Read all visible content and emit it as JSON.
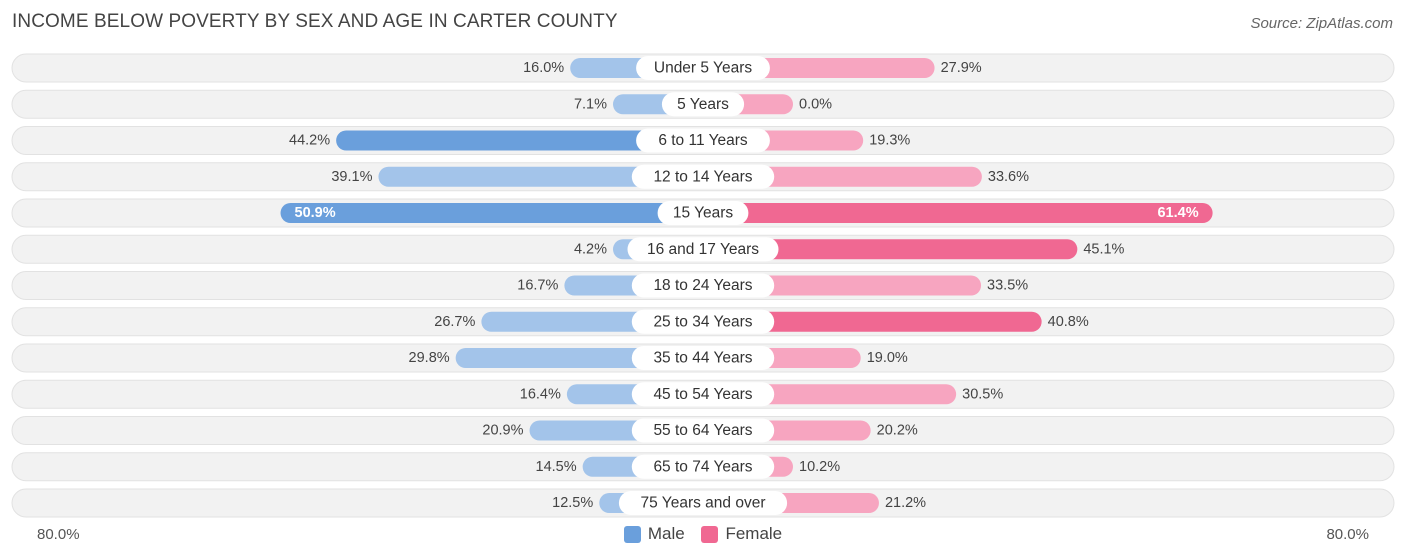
{
  "header": {
    "title": "INCOME BELOW POVERTY BY SEX AND AGE IN CARTER COUNTY",
    "source": "Source: ZipAtlas.com"
  },
  "axis": {
    "left_label": "80.0%",
    "right_label": "80.0%"
  },
  "legend": {
    "male_label": "Male",
    "female_label": "Female"
  },
  "colors": {
    "male": "#6a9fdc",
    "male_light": "#a3c4ea",
    "female": "#f06892",
    "female_light": "#f7a5c0",
    "row_bg": "#f2f2f2",
    "row_border": "#e2e2e2"
  },
  "chart_data": {
    "type": "bar",
    "orientation": "horizontal-diverging",
    "title": "INCOME BELOW POVERTY BY SEX AND AGE IN CARTER COUNTY",
    "xlim": [
      -80,
      80
    ],
    "categories": [
      "Under 5 Years",
      "5 Years",
      "6 to 11 Years",
      "12 to 14 Years",
      "15 Years",
      "16 and 17 Years",
      "18 to 24 Years",
      "25 to 34 Years",
      "35 to 44 Years",
      "45 to 54 Years",
      "55 to 64 Years",
      "65 to 74 Years",
      "75 Years and over"
    ],
    "series": [
      {
        "name": "Male",
        "values": [
          16.0,
          7.1,
          44.2,
          39.1,
          50.9,
          4.2,
          16.7,
          26.7,
          29.8,
          16.4,
          20.9,
          14.5,
          12.5
        ],
        "labels": [
          "16.0%",
          "7.1%",
          "44.2%",
          "39.1%",
          "50.9%",
          "4.2%",
          "16.7%",
          "26.7%",
          "29.8%",
          "16.4%",
          "20.9%",
          "14.5%",
          "12.5%"
        ]
      },
      {
        "name": "Female",
        "values": [
          27.9,
          0.0,
          19.3,
          33.6,
          61.4,
          45.1,
          33.5,
          40.8,
          19.0,
          30.5,
          20.2,
          10.2,
          21.2
        ],
        "labels": [
          "27.9%",
          "0.0%",
          "19.3%",
          "33.6%",
          "61.4%",
          "45.1%",
          "33.5%",
          "40.8%",
          "19.0%",
          "30.5%",
          "20.2%",
          "10.2%",
          "21.2%"
        ]
      }
    ]
  }
}
